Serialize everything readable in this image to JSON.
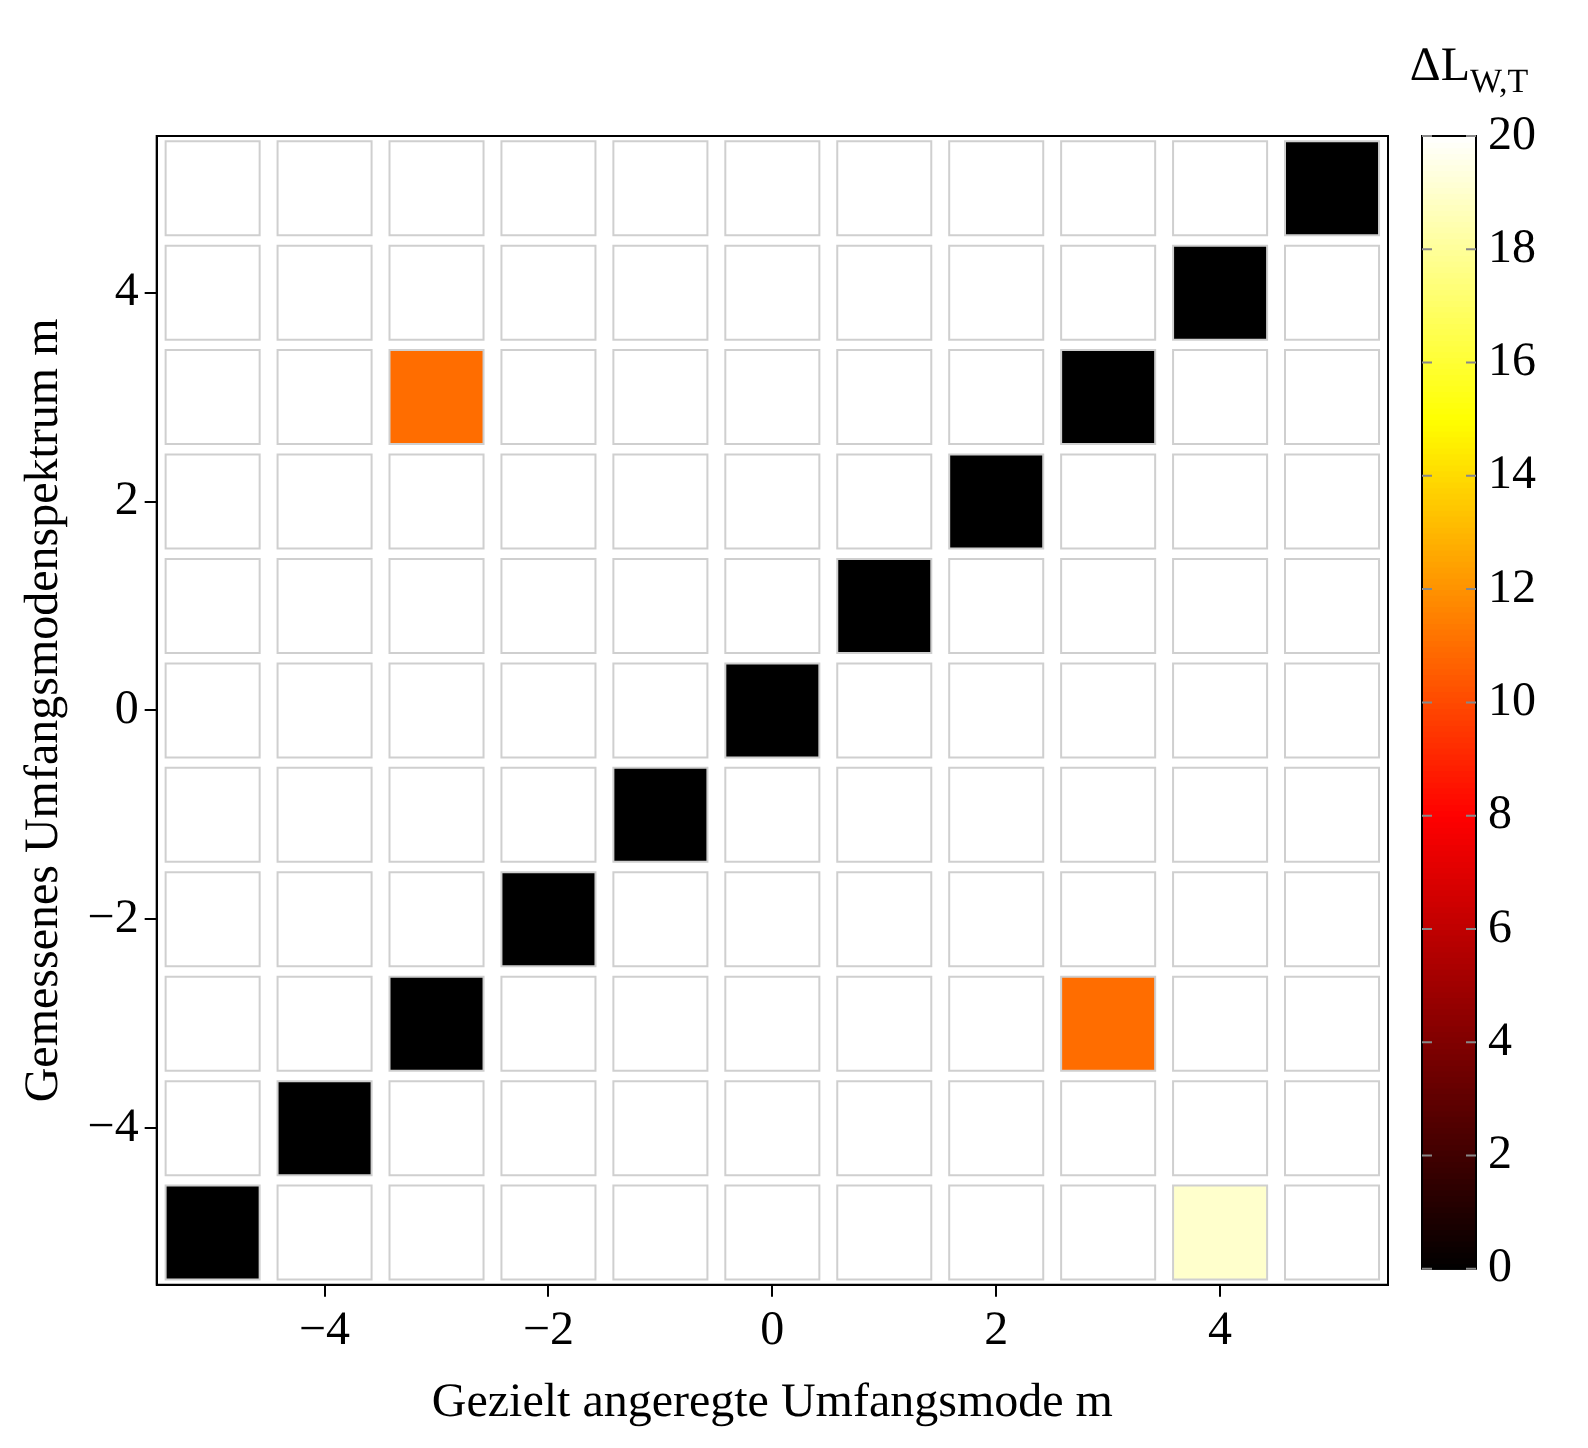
{
  "chart_data": {
    "type": "heatmap",
    "xlabel": "Gezielt angeregte Umfangsmode m",
    "ylabel": "Gemessenes Umfangsmodenspektrum m",
    "clabel": "ΔL$_{W,T}$",
    "categories": [
      null,
      "−4",
      null,
      "−2",
      null,
      "0",
      null,
      "2",
      null,
      "4",
      null
    ],
    "y_categories": [
      null,
      "4",
      null,
      "2",
      null,
      "0",
      null,
      "−2",
      null,
      "−4",
      null
    ],
    "cells": [
      [
        20,
        20,
        20,
        20,
        20,
        20,
        20,
        20,
        20,
        20,
        0
      ],
      [
        20,
        20,
        20,
        20,
        20,
        20,
        20,
        20,
        20,
        0,
        20
      ],
      [
        20,
        20,
        11,
        20,
        20,
        20,
        20,
        20,
        0,
        20,
        20
      ],
      [
        20,
        20,
        20,
        20,
        20,
        20,
        20,
        0,
        20,
        20,
        20
      ],
      [
        20,
        20,
        20,
        20,
        20,
        20,
        0,
        20,
        20,
        20,
        20
      ],
      [
        20,
        20,
        20,
        20,
        20,
        0,
        20,
        20,
        20,
        20,
        20
      ],
      [
        20,
        20,
        20,
        20,
        0,
        20,
        20,
        20,
        20,
        20,
        20
      ],
      [
        20,
        20,
        20,
        0,
        20,
        20,
        20,
        20,
        20,
        20,
        20
      ],
      [
        20,
        20,
        0,
        20,
        20,
        20,
        20,
        20,
        11,
        20,
        20
      ],
      [
        20,
        0,
        20,
        20,
        20,
        20,
        20,
        20,
        20,
        20,
        20
      ],
      [
        0,
        20,
        20,
        20,
        20,
        20,
        20,
        20,
        20,
        19,
        20
      ]
    ],
    "clim": [
      0,
      20
    ],
    "cticks": [
      0,
      2,
      4,
      6,
      8,
      10,
      12,
      14,
      16,
      18,
      20
    ]
  }
}
